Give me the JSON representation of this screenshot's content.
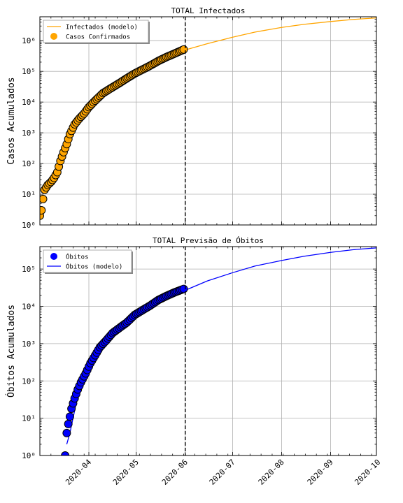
{
  "chart_data": [
    {
      "type": "scatter",
      "title": "TOTAL Infectados",
      "ylabel": "Casos Acumulados",
      "yscale": "log",
      "ylim": [
        1,
        6000000
      ],
      "xlim": [
        "2020-03-01",
        "2020-09-30"
      ],
      "yticks": [
        1,
        10,
        100,
        1000,
        10000,
        100000,
        1000000
      ],
      "ytick_labels": [
        "10⁰",
        "10¹",
        "10²",
        "10³",
        "10⁴",
        "10⁵",
        "10⁶"
      ],
      "grid": true,
      "legend_position": "top-left",
      "vline_date": "2020-06-01",
      "colors": {
        "model": "#ffa500",
        "points": "#ffa500",
        "edge": "#000000"
      },
      "series": [
        {
          "name": "Infectados (modelo)",
          "kind": "line",
          "x": [
            "2020-06-01",
            "2020-06-15",
            "2020-07-01",
            "2020-07-15",
            "2020-08-01",
            "2020-08-15",
            "2020-09-01",
            "2020-09-15",
            "2020-09-30"
          ],
          "y": [
            500000,
            800000,
            1300000,
            1900000,
            2700000,
            3400000,
            4200000,
            4900000,
            5500000
          ]
        },
        {
          "name": "Casos Confirmados",
          "kind": "scatter",
          "x": [
            "2020-03-01",
            "2020-03-02",
            "2020-03-03",
            "2020-03-04",
            "2020-03-06",
            "2020-03-08",
            "2020-03-10",
            "2020-03-12",
            "2020-03-14",
            "2020-03-16",
            "2020-03-18",
            "2020-03-20",
            "2020-03-23",
            "2020-03-26",
            "2020-03-29",
            "2020-04-01",
            "2020-04-05",
            "2020-04-10",
            "2020-04-15",
            "2020-04-20",
            "2020-04-25",
            "2020-04-30",
            "2020-05-05",
            "2020-05-10",
            "2020-05-15",
            "2020-05-20",
            "2020-05-25",
            "2020-05-31"
          ],
          "y": [
            2,
            3,
            7,
            14,
            20,
            25,
            34,
            52,
            121,
            234,
            428,
            904,
            1891,
            2915,
            4256,
            6836,
            11130,
            19638,
            28320,
            40581,
            59324,
            85380,
            114715,
            155939,
            218223,
            291579,
            374898,
            514849
          ]
        }
      ]
    },
    {
      "type": "scatter",
      "title": "TOTAL Previsão de Óbitos",
      "ylabel": "Óbitos Acumulados",
      "yscale": "log",
      "ylim": [
        1,
        400000
      ],
      "xlim": [
        "2020-03-01",
        "2020-09-30"
      ],
      "yticks": [
        1,
        10,
        100,
        1000,
        10000,
        100000
      ],
      "ytick_labels": [
        "10⁰",
        "10¹",
        "10²",
        "10³",
        "10⁴",
        "10⁵"
      ],
      "xtick_labels": [
        "2020-04",
        "2020-05",
        "2020-06",
        "2020-07",
        "2020-08",
        "2020-09",
        "2020-10"
      ],
      "xticks": [
        "2020-04-01",
        "2020-05-01",
        "2020-06-01",
        "2020-07-01",
        "2020-08-01",
        "2020-09-01",
        "2020-10-01"
      ],
      "grid": true,
      "legend_position": "top-left",
      "vline_date": "2020-06-01",
      "colors": {
        "model": "#0000ff",
        "points": "#0000ff",
        "edge": "#000000"
      },
      "series": [
        {
          "name": "Óbitos",
          "kind": "scatter",
          "x": [
            "2020-03-17",
            "2020-03-18",
            "2020-03-19",
            "2020-03-20",
            "2020-03-21",
            "2020-03-22",
            "2020-03-23",
            "2020-03-25",
            "2020-03-27",
            "2020-03-30",
            "2020-04-02",
            "2020-04-05",
            "2020-04-08",
            "2020-04-12",
            "2020-04-16",
            "2020-04-20",
            "2020-04-25",
            "2020-04-30",
            "2020-05-05",
            "2020-05-10",
            "2020-05-15",
            "2020-05-20",
            "2020-05-25",
            "2020-05-31"
          ],
          "y": [
            1,
            4,
            7,
            11,
            18,
            25,
            34,
            59,
            92,
            159,
            299,
            486,
            800,
            1223,
            1924,
            2575,
            3670,
            5901,
            7921,
            10627,
            14817,
            18859,
            23473,
            29314
          ]
        },
        {
          "name": "Óbitos (modelo)",
          "kind": "line",
          "x": [
            "2020-03-18",
            "2020-03-20",
            "2020-03-25",
            "2020-04-01",
            "2020-04-10",
            "2020-04-20",
            "2020-05-01",
            "2020-05-15",
            "2020-06-01",
            "2020-06-15",
            "2020-07-01",
            "2020-07-15",
            "2020-08-01",
            "2020-08-15",
            "2020-09-01",
            "2020-09-15",
            "2020-09-30"
          ],
          "y": [
            2,
            4,
            40,
            220,
            900,
            2300,
            5500,
            13000,
            27000,
            48000,
            80000,
            120000,
            170000,
            220000,
            280000,
            330000,
            370000
          ]
        }
      ]
    }
  ]
}
